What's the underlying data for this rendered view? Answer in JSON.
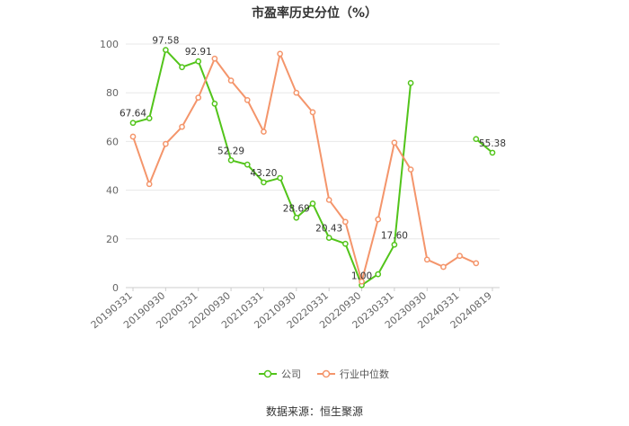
{
  "chart_data": {
    "type": "line",
    "title": "市盈率历史分位（%）",
    "source": "数据来源：恒生聚源",
    "ylim": [
      0,
      100
    ],
    "yticks": [
      0,
      20,
      40,
      60,
      80,
      100
    ],
    "grid": true,
    "legend_placement": "bottom",
    "x_tick_labels": [
      "20190331",
      "20190930",
      "20200331",
      "20200930",
      "20210331",
      "20210930",
      "20220331",
      "20220930",
      "20230331",
      "20230930",
      "20240331",
      "20240819"
    ],
    "x_tick_index": [
      0,
      2,
      4,
      6,
      8,
      10,
      12,
      14,
      16,
      18,
      20,
      22
    ],
    "x_count": 23,
    "series": [
      {
        "name": "公司",
        "color": "#52c41a",
        "values": [
          67.64,
          69.5,
          97.58,
          90.5,
          92.91,
          75.5,
          52.29,
          50.5,
          43.2,
          45.0,
          28.69,
          34.5,
          20.43,
          18.0,
          1.0,
          5.5,
          17.6,
          84.0,
          null,
          null,
          null,
          61.0,
          55.38
        ],
        "labels": {
          "0": "67.64",
          "2": "97.58",
          "4": "92.91",
          "6": "52.29",
          "8": "43.20",
          "10": "28.69",
          "12": "20.43",
          "14": "1.00",
          "16": "17.60",
          "22": "55.38"
        }
      },
      {
        "name": "行业中位数",
        "color": "#f4956b",
        "values": [
          62.0,
          42.5,
          59.0,
          66.0,
          78.0,
          94.0,
          85.0,
          77.0,
          64.0,
          96.0,
          80.0,
          72.0,
          36.0,
          27.0,
          2.5,
          28.0,
          59.5,
          48.5,
          11.5,
          8.5,
          13.0,
          10.0,
          null
        ],
        "labels": {}
      }
    ]
  }
}
